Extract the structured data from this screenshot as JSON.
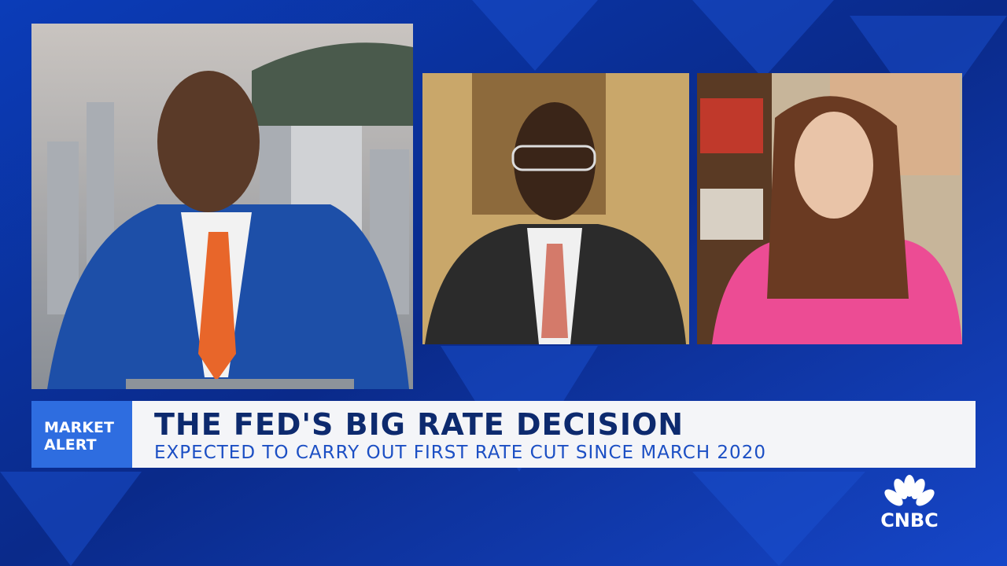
{
  "lower_third": {
    "tag_line_1": "MARKET",
    "tag_line_2": "ALERT",
    "headline": "THE FED'S BIG RATE DECISION",
    "subhead": "EXPECTED TO CARRY OUT FIRST RATE CUT SINCE MARCH 2020"
  },
  "logo": "CNBC"
}
